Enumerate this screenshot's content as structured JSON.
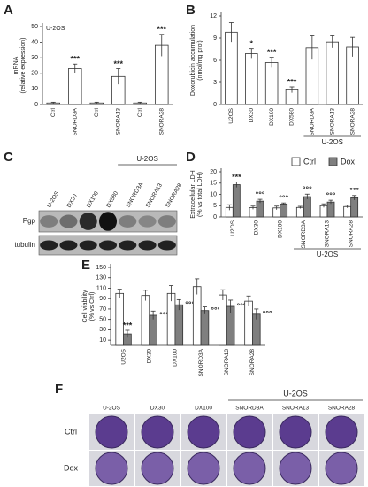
{
  "chart_data": [
    {
      "type": "bar",
      "label": "A",
      "subtitle": "U-2OS",
      "y_label": "mRNA\n(relative expression)",
      "categories": [
        "Ctrl",
        "SNORD3A",
        "Ctrl",
        "SNORA13",
        "Ctrl",
        "SNORA28"
      ],
      "series": [
        {
          "color": "#ffffff",
          "values": [
            1,
            23,
            1,
            18,
            1,
            38
          ],
          "errors": [
            0.5,
            3,
            0.5,
            5,
            0.5,
            7
          ],
          "annotations": [
            null,
            "***",
            null,
            "***",
            null,
            "***"
          ]
        }
      ],
      "ylim": [
        0,
        50
      ],
      "yticks": [
        0,
        10,
        20,
        30,
        40,
        50
      ]
    },
    {
      "type": "bar",
      "label": "B",
      "y_label": "Doxorubicin accumulation\n(nmol/mg prot)",
      "group_label": "U-2OS",
      "categories": [
        "U2OS",
        "DX30",
        "DX100",
        "DX580",
        "SNORD3A",
        "SNORA13",
        "SNORA28"
      ],
      "series": [
        {
          "color": "#ffffff",
          "values": [
            9.8,
            6.9,
            5.7,
            2.0,
            7.7,
            8.5,
            7.8
          ],
          "errors": [
            1.3,
            0.7,
            0.7,
            0.4,
            1.6,
            0.8,
            1.3
          ],
          "annotations": [
            null,
            "*",
            "***",
            "***",
            null,
            null,
            null
          ]
        }
      ],
      "ylim": [
        0,
        12
      ],
      "yticks": [
        0,
        3,
        6,
        9,
        12
      ]
    },
    {
      "type": "bar",
      "label": "D",
      "y_label": "Extracellular LDH\n(% vs total LDH)",
      "group_label": "U-2OS",
      "legend": "top-right",
      "categories": [
        "U2OS",
        "DX30",
        "DX100",
        "SNORD3A",
        "SNORA13",
        "SNORA28"
      ],
      "series": [
        {
          "name": "Ctrl",
          "color": "#ffffff",
          "values": [
            4.2,
            4.1,
            4.0,
            4.2,
            5.0,
            4.6
          ],
          "errors": [
            1.2,
            0.7,
            0.8,
            0.5,
            0.8,
            0.6
          ]
        },
        {
          "name": "Dox",
          "color": "#7f7f7f",
          "values": [
            14.3,
            7.0,
            5.7,
            9.0,
            6.6,
            8.5
          ],
          "errors": [
            1.2,
            0.8,
            0.5,
            1.1,
            0.8,
            1.0
          ],
          "annotations": [
            "***",
            "°°°",
            "°°°",
            "°°°",
            "°°°",
            "°°°"
          ]
        }
      ],
      "ylim": [
        0,
        20
      ],
      "yticks": [
        0,
        5,
        10,
        15,
        20
      ]
    },
    {
      "type": "bar",
      "label": "E",
      "y_label": "Cell viability\n(% vs Ctrl)",
      "categories": [
        "U2OS",
        "DX30",
        "DX100",
        "SNORD3A",
        "SNORA13",
        "SNORA28"
      ],
      "series": [
        {
          "color": "#ffffff",
          "values": [
            100,
            96,
            100,
            113,
            97,
            85
          ],
          "errors": [
            8,
            10,
            15,
            15,
            10,
            10
          ]
        },
        {
          "color": "#7f7f7f",
          "values": [
            22,
            58,
            78,
            67,
            75,
            60
          ],
          "errors": [
            7,
            8,
            10,
            7,
            12,
            10
          ],
          "annotations": [
            "***",
            "°°°",
            "°°°",
            "°°°",
            "°°°",
            "°°°"
          ]
        }
      ],
      "ylim": [
        0,
        150
      ],
      "yticks": [
        10,
        30,
        50,
        70,
        90,
        110,
        130,
        150
      ]
    }
  ],
  "blot": {
    "label": "C",
    "group_label": "U-2OS",
    "lanes": [
      "U-2OS",
      "DX30",
      "DX100",
      "DX580",
      "SNORD3A",
      "SNORA13",
      "SNORA28"
    ],
    "rows": [
      "Pgp",
      "tubulin"
    ]
  },
  "plates": {
    "label": "F",
    "group_label": "U-2OS",
    "columns": [
      "U-2OS",
      "DX30",
      "DX100",
      "SNORD3A",
      "SNORA13",
      "SNORA28"
    ],
    "rows": [
      "Ctrl",
      "Dox"
    ]
  }
}
